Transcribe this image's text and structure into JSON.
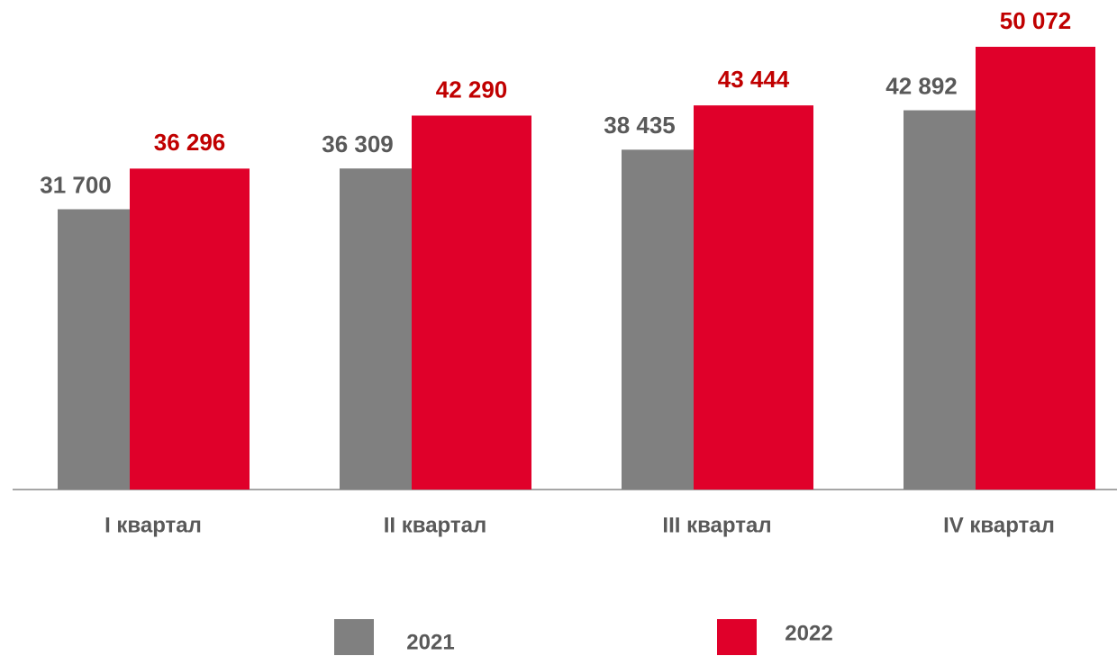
{
  "chart_data": {
    "type": "bar",
    "categories": [
      "I квартал",
      "II квартал",
      "III квартал",
      "IV квартал"
    ],
    "series": [
      {
        "name": "2021",
        "color": "#808080",
        "label_color": "#595959",
        "values": [
          31700,
          36309,
          38435,
          42892
        ],
        "value_labels": [
          "31 700",
          "36 309",
          "38 435",
          "42 892"
        ]
      },
      {
        "name": "2022",
        "color": "#e0002a",
        "label_color": "#c00000",
        "values": [
          36296,
          42290,
          43444,
          50072
        ],
        "value_labels": [
          "36 296",
          "42 290",
          "43 444",
          "50 072"
        ]
      }
    ]
  }
}
